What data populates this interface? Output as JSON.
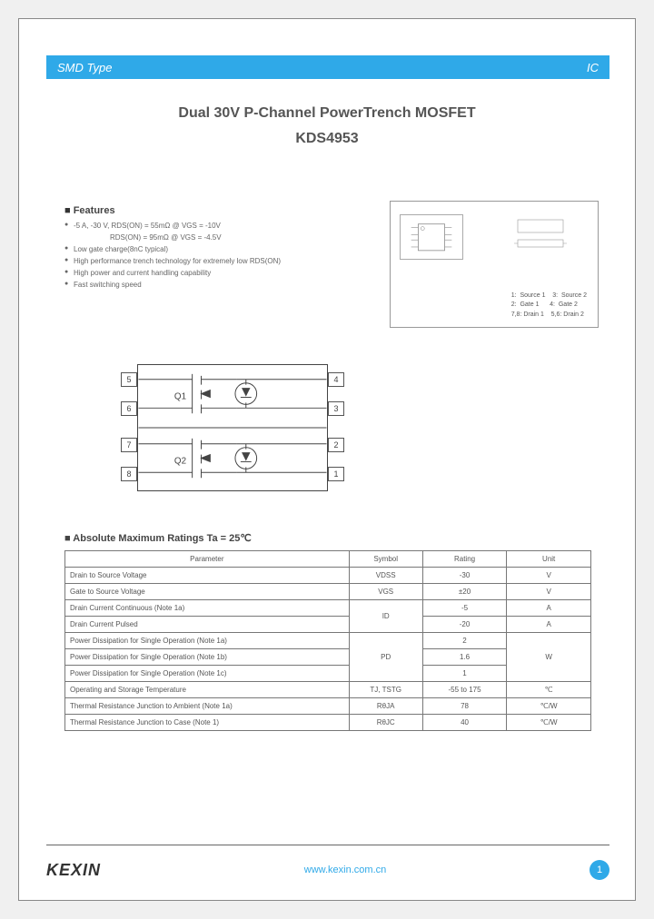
{
  "header": {
    "left": "SMD Type",
    "right": "IC"
  },
  "title": "Dual 30V P-Channel PowerTrench  MOSFET",
  "part_number": "KDS4953",
  "features": {
    "heading": "Features",
    "lines": [
      "-5 A, -30 V, RDS(ON) = 55mΩ @ VGS = -10V",
      "Low gate charge(8nC typical)",
      "High performance trench technology for extremely low RDS(ON)",
      "High power and current handling capability",
      "Fast switching speed"
    ],
    "sub_line": "RDS(ON) = 95mΩ @ VGS = -4.5V"
  },
  "pin_legend": {
    "rows": [
      "1:  Source 1    3:  Source 2",
      "2:  Gate 1      4:  Gate 2",
      "7,8: Drain 1    5,6: Drain 2"
    ]
  },
  "schematic": {
    "left_pins": [
      "5",
      "6",
      "7",
      "8"
    ],
    "right_pins": [
      "4",
      "3",
      "2",
      "1"
    ],
    "q_labels": [
      "Q1",
      "Q2"
    ]
  },
  "ratings": {
    "heading": "Absolute Maximum Ratings Ta = 25℃",
    "columns": [
      "Parameter",
      "Symbol",
      "Rating",
      "Unit"
    ],
    "col_widths": [
      "54%",
      "14%",
      "16%",
      "16%"
    ],
    "rows": [
      {
        "p": "Drain to Source Voltage",
        "s": "VDSS",
        "r": "-30",
        "u": "V"
      },
      {
        "p": "Gate to Source Voltage",
        "s": "VGS",
        "r": "±20",
        "u": "V"
      },
      {
        "p": "Drain Current Continuous   (Note 1a)",
        "s": "ID",
        "r": "-5",
        "u": "A",
        "s_rowspan": 2
      },
      {
        "p": "Drain Current Pulsed",
        "r": "-20",
        "u": "A"
      },
      {
        "p": "Power Dissipation for Single Operation  (Note 1a)",
        "s": "PD",
        "r": "2",
        "u": "W",
        "s_rowspan": 3,
        "u_rowspan": 3
      },
      {
        "p": "Power Dissipation for Single Operation  (Note 1b)",
        "r": "1.6"
      },
      {
        "p": "Power Dissipation for Single Operation  (Note 1c)",
        "r": "1"
      },
      {
        "p": "Operating and Storage Temperature",
        "s": "TJ, TSTG",
        "r": "-55 to 175",
        "u": "℃"
      },
      {
        "p": "Thermal Resistance Junction to Ambient  (Note 1a)",
        "s": "RθJA",
        "r": "78",
        "u": "℃/W"
      },
      {
        "p": "Thermal Resistance Junction to Case (Note 1)",
        "s": "RθJC",
        "r": "40",
        "u": "℃/W"
      }
    ]
  },
  "footer": {
    "logo": "KEXIN",
    "url": "www.kexin.com.cn",
    "page": "1"
  },
  "colors": {
    "band": "#2fa9e8",
    "text": "#555555",
    "border": "#777777"
  }
}
